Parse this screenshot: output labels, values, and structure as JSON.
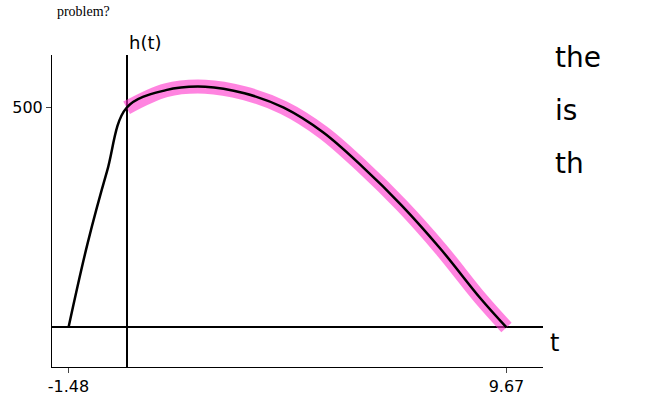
{
  "chart_data": {
    "type": "line",
    "title": "problem?",
    "x_label": "t",
    "y_label": "h(t)",
    "x": [
      -1.48,
      -1,
      -0.5,
      0,
      1,
      2,
      3,
      4,
      5,
      6,
      7,
      8,
      9,
      9.67
    ],
    "series": [
      {
        "color": "#ff33cc",
        "line_style": "highlight",
        "values": [
          null,
          null,
          null,
          500,
          540,
          548,
          533,
          500,
          444,
          366,
          278,
          178,
          67,
          0
        ]
      },
      {
        "color": "#000000",
        "line_style": "solid",
        "values": [
          0,
          189,
          355,
          500,
          540,
          548,
          533,
          500,
          444,
          366,
          278,
          178,
          67,
          0
        ]
      }
    ],
    "xlim": [
      -1.9,
      10.6
    ],
    "ylim": [
      -90,
      620
    ],
    "xticks": [
      -1.48,
      9.67
    ],
    "yticks": [
      500
    ],
    "grid": false,
    "annotations": [
      "the",
      "is",
      "th"
    ]
  }
}
